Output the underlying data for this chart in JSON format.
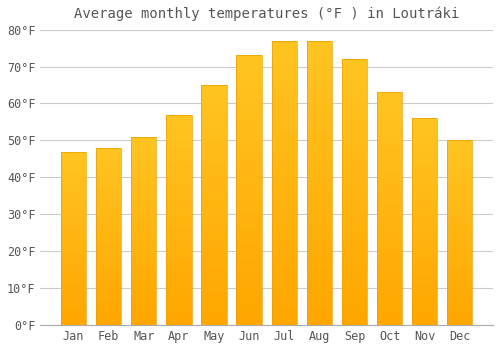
{
  "title": "Average monthly temperatures (°F ) in LoutrÃki",
  "title_display": "Average monthly temperatures (°F ) in Loutráki",
  "months": [
    "Jan",
    "Feb",
    "Mar",
    "Apr",
    "May",
    "Jun",
    "Jul",
    "Aug",
    "Sep",
    "Oct",
    "Nov",
    "Dec"
  ],
  "values": [
    47,
    48,
    51,
    57,
    65,
    73,
    77,
    77,
    72,
    63,
    56,
    50
  ],
  "bar_color_top": "#FFC020",
  "bar_color_bottom": "#FFB000",
  "bar_edge_color": "#E8A000",
  "background_color": "#FFFFFF",
  "grid_color": "#CCCCCC",
  "text_color": "#555555",
  "ylim": [
    0,
    80
  ],
  "yticks": [
    0,
    10,
    20,
    30,
    40,
    50,
    60,
    70,
    80
  ],
  "title_fontsize": 10,
  "tick_fontsize": 8.5
}
